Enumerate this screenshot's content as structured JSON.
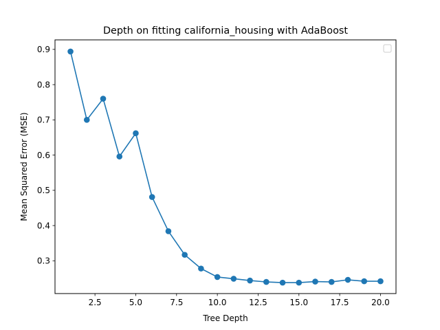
{
  "chart_data": {
    "type": "line",
    "title": "Depth on fitting california_housing with AdaBoost",
    "xlabel": "Tree Depth",
    "ylabel": "Mean Squared Error (MSE)",
    "xlim": [
      0.05,
      20.95
    ],
    "ylim": [
      0.207,
      0.927
    ],
    "xticks": [
      2.5,
      5.0,
      7.5,
      10.0,
      12.5,
      15.0,
      17.5,
      20.0
    ],
    "xtick_labels": [
      "2.5",
      "5.0",
      "7.5",
      "10.0",
      "12.5",
      "15.0",
      "17.5",
      "20.0"
    ],
    "yticks": [
      0.3,
      0.4,
      0.5,
      0.6,
      0.7,
      0.8,
      0.9
    ],
    "ytick_labels": [
      "0.3",
      "0.4",
      "0.5",
      "0.6",
      "0.7",
      "0.8",
      "0.9"
    ],
    "grid": false,
    "legend_position": "top-right",
    "legend_entries": [],
    "marker": "circle",
    "series": [
      {
        "color": "#1f77b4",
        "x": [
          1,
          2,
          3,
          4,
          5,
          6,
          7,
          8,
          9,
          10,
          11,
          12,
          13,
          14,
          15,
          16,
          17,
          18,
          19,
          20
        ],
        "y": [
          0.894,
          0.7,
          0.76,
          0.596,
          0.662,
          0.481,
          0.384,
          0.317,
          0.278,
          0.254,
          0.249,
          0.244,
          0.24,
          0.238,
          0.238,
          0.241,
          0.24,
          0.246,
          0.242,
          0.242
        ]
      }
    ]
  }
}
